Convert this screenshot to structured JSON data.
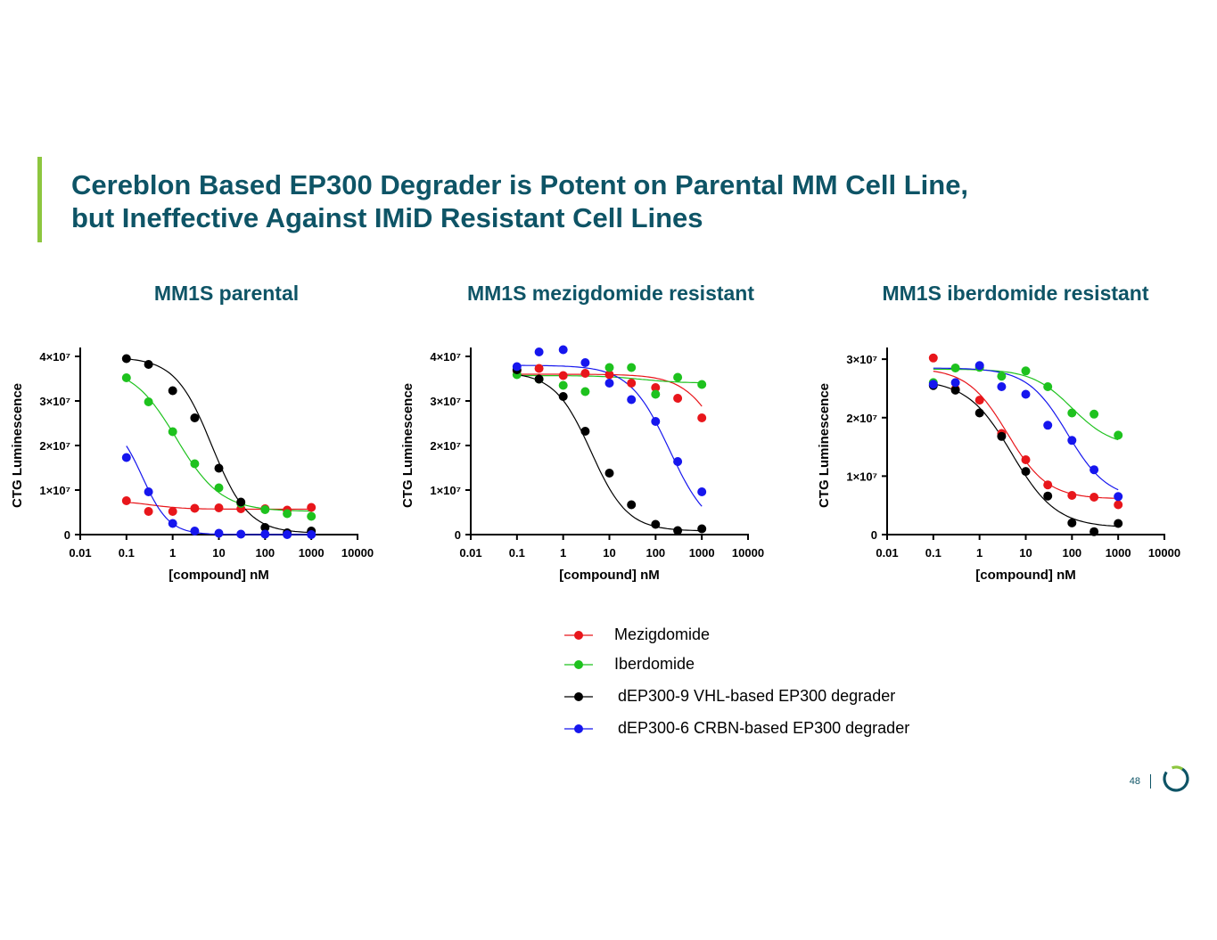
{
  "slide": {
    "title_line1": "Cereblon Based EP300 Degrader is Potent on Parental MM Cell Line,",
    "title_line2": "but Ineffective Against IMiD Resistant Cell Lines",
    "page_number": "48",
    "accent_color": "#8dc63f",
    "title_color": "#0e5466"
  },
  "legend": [
    {
      "label": "Mezigdomide",
      "color": "#e8161b"
    },
    {
      "label": "Iberdomide",
      "color": "#1ec21e"
    },
    {
      "label": "dEP300-9 VHL-based EP300 degrader",
      "color": "#000000"
    },
    {
      "label": "dEP300-6 CRBN-based EP300 degrader",
      "color": "#1616ee"
    }
  ],
  "chart_data": [
    {
      "type": "scatter",
      "title": "MM1S parental",
      "xlabel": "[compound] nM",
      "ylabel": "CTG Luminescence",
      "xscale": "log",
      "xlim": [
        0.01,
        10000
      ],
      "ylim": [
        0,
        42000000
      ],
      "xticks": [
        "0.01",
        "0.1",
        "1",
        "10",
        "100",
        "1000",
        "10000"
      ],
      "yticks": [
        {
          "value": 0,
          "label": "0"
        },
        {
          "value": 10000000,
          "label": "1×10⁷"
        },
        {
          "value": 20000000,
          "label": "2×10⁷"
        },
        {
          "value": 30000000,
          "label": "3×10⁷"
        },
        {
          "value": 40000000,
          "label": "4×10⁷"
        }
      ],
      "x": [
        0.1,
        0.3,
        1,
        3,
        10,
        30,
        100,
        300,
        1000
      ],
      "series": [
        {
          "name": "Mezigdomide",
          "color": "#e8161b",
          "values": [
            7600000,
            5200000,
            5200000,
            5900000,
            6000000,
            5800000,
            5800000,
            5500000,
            6100000
          ],
          "fit": {
            "top": 7600000,
            "bottom": 5700000,
            "ec50": 0.35,
            "hill": 1.2
          }
        },
        {
          "name": "Iberdomide",
          "color": "#1ec21e",
          "values": [
            35200000,
            29800000,
            23100000,
            15900000,
            10500000,
            7000000,
            5600000,
            4700000,
            4100000
          ],
          "fit": {
            "top": 38000000,
            "bottom": 5200000,
            "ec50": 1.2,
            "hill": 0.9
          }
        },
        {
          "name": "dEP300-9 VHL-based EP300 degrader",
          "color": "#000000",
          "values": [
            39500000,
            38200000,
            32300000,
            26200000,
            14900000,
            7300000,
            1600000,
            400000,
            800000
          ],
          "fit": {
            "top": 39800000,
            "bottom": 300000,
            "ec50": 7,
            "hill": 1.1
          }
        },
        {
          "name": "dEP300-6 CRBN-based EP300 degrader",
          "color": "#1616ee",
          "values": [
            17300000,
            9600000,
            2500000,
            800000,
            300000,
            100000,
            100000,
            0,
            0
          ],
          "fit": {
            "top": 26000000,
            "bottom": 0,
            "ec50": 0.22,
            "hill": 1.5
          }
        }
      ]
    },
    {
      "type": "scatter",
      "title": "MM1S mezigdomide resistant",
      "xlabel": "[compound] nM",
      "ylabel": "CTG Luminescence",
      "xscale": "log",
      "xlim": [
        0.01,
        10000
      ],
      "ylim": [
        0,
        42000000
      ],
      "xticks": [
        "0.01",
        "0.1",
        "1",
        "10",
        "100",
        "1000",
        "10000"
      ],
      "yticks": [
        {
          "value": 0,
          "label": "0"
        },
        {
          "value": 10000000,
          "label": "1×10⁷"
        },
        {
          "value": 20000000,
          "label": "2×10⁷"
        },
        {
          "value": 30000000,
          "label": "3×10⁷"
        },
        {
          "value": 40000000,
          "label": "4×10⁷"
        }
      ],
      "x": [
        0.1,
        0.3,
        1,
        3,
        10,
        30,
        100,
        300,
        1000
      ],
      "series": [
        {
          "name": "Mezigdomide",
          "color": "#e8161b",
          "values": [
            36800000,
            37300000,
            35700000,
            36200000,
            35900000,
            34000000,
            33000000,
            30600000,
            26200000
          ],
          "fit": {
            "top": 36000000,
            "bottom": 0,
            "ec50": 4000,
            "hill": 1.0
          }
        },
        {
          "name": "Iberdomide",
          "color": "#1ec21e",
          "values": [
            35900000,
            34900000,
            33500000,
            32100000,
            37500000,
            37500000,
            31500000,
            35300000,
            33700000
          ],
          "fit": {
            "top": 35700000,
            "bottom": 34000000,
            "ec50": 50,
            "hill": 1.0
          }
        },
        {
          "name": "dEP300-9 VHL-based EP300 degrader",
          "color": "#000000",
          "values": [
            37000000,
            34900000,
            31000000,
            23200000,
            13800000,
            6700000,
            2300000,
            900000,
            1300000
          ],
          "fit": {
            "top": 36500000,
            "bottom": 800000,
            "ec50": 4,
            "hill": 1.1
          }
        },
        {
          "name": "dEP300-6 CRBN-based EP300 degrader",
          "color": "#1616ee",
          "values": [
            37700000,
            41000000,
            41500000,
            38600000,
            34000000,
            30300000,
            25400000,
            16400000,
            9600000
          ],
          "fit": {
            "top": 38000000,
            "bottom": 0,
            "ec50": 200,
            "hill": 1.0
          }
        }
      ]
    },
    {
      "type": "scatter",
      "title": "MM1S iberdomide resistant",
      "xlabel": "[compound] nM",
      "ylabel": "CTG Luminescence",
      "xscale": "log",
      "xlim": [
        0.01,
        10000
      ],
      "ylim": [
        0,
        32000000
      ],
      "xticks": [
        "0.01",
        "0.1",
        "1",
        "10",
        "100",
        "1000",
        "10000"
      ],
      "yticks": [
        {
          "value": 0,
          "label": "0"
        },
        {
          "value": 10000000,
          "label": "1×10⁷"
        },
        {
          "value": 20000000,
          "label": "2×10⁷"
        },
        {
          "value": 30000000,
          "label": "3×10⁷"
        }
      ],
      "x": [
        0.1,
        0.3,
        1,
        3,
        10,
        30,
        100,
        300,
        1000
      ],
      "series": [
        {
          "name": "Mezigdomide",
          "color": "#e8161b",
          "values": [
            30200000,
            24900000,
            23000000,
            17300000,
            12800000,
            8500000,
            6700000,
            6400000,
            5100000
          ],
          "fit": {
            "top": 28500000,
            "bottom": 6100000,
            "ec50": 4,
            "hill": 1.0
          }
        },
        {
          "name": "Iberdomide",
          "color": "#1ec21e",
          "values": [
            26000000,
            28500000,
            28600000,
            27100000,
            28000000,
            25300000,
            20800000,
            20600000,
            17000000
          ],
          "fit": {
            "top": 28300000,
            "bottom": 15000000,
            "ec50": 100,
            "hill": 1.0
          }
        },
        {
          "name": "dEP300-9 VHL-based EP300 degrader",
          "color": "#000000",
          "values": [
            25500000,
            24700000,
            20800000,
            16800000,
            10800000,
            6600000,
            2000000,
            500000,
            1900000
          ],
          "fit": {
            "top": 26500000,
            "bottom": 1200000,
            "ec50": 5,
            "hill": 0.9
          }
        },
        {
          "name": "dEP300-6 CRBN-based EP300 degrader",
          "color": "#1616ee",
          "values": [
            25700000,
            26000000,
            28900000,
            25300000,
            24000000,
            18700000,
            16100000,
            11100000,
            6500000
          ],
          "fit": {
            "top": 28500000,
            "bottom": 6000000,
            "ec50": 80,
            "hill": 1.0
          }
        }
      ]
    }
  ]
}
